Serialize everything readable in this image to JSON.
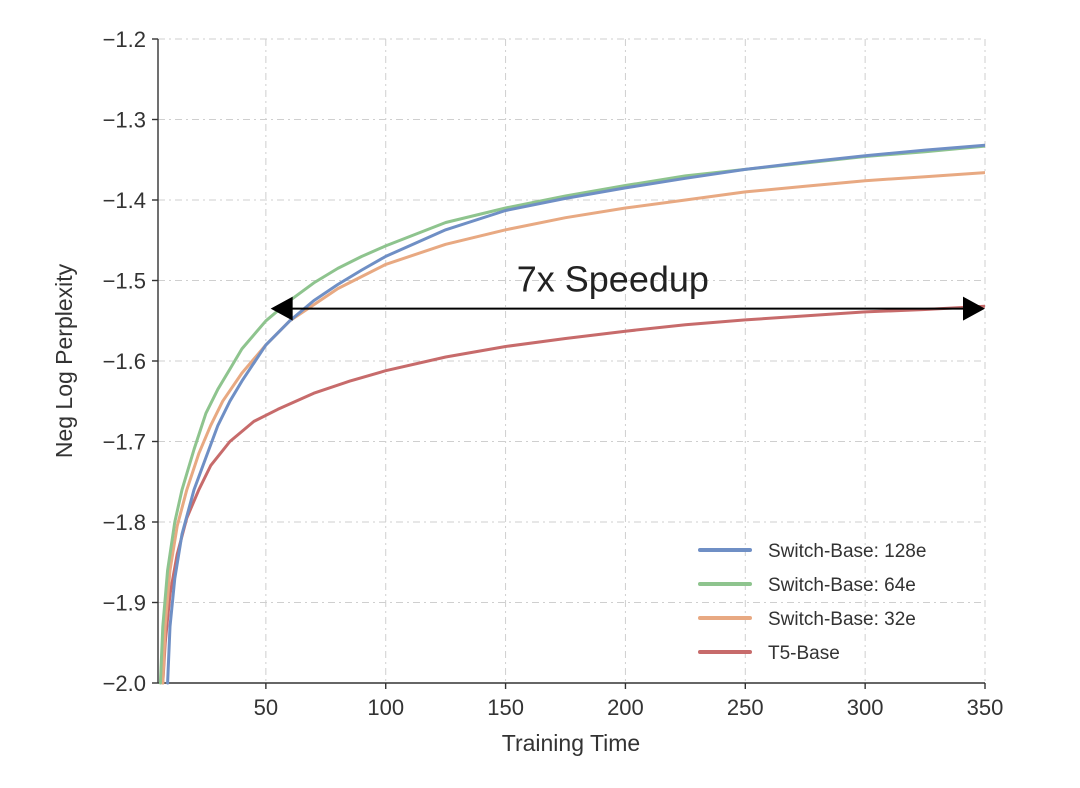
{
  "chart_data": {
    "type": "line",
    "xlabel": "Training Time",
    "ylabel": "Neg Log Perplexity",
    "xlim": [
      5,
      350
    ],
    "ylim": [
      -2.0,
      -1.2
    ],
    "x_ticks": [
      50,
      100,
      150,
      200,
      250,
      300,
      350
    ],
    "y_ticks": [
      -2.0,
      -1.9,
      -1.8,
      -1.7,
      -1.6,
      -1.5,
      -1.4,
      -1.3,
      -1.2
    ],
    "x_tick_labels": [
      "50",
      "100",
      "150",
      "200",
      "250",
      "300",
      "350"
    ],
    "y_tick_labels": [
      "−2.0",
      "−1.9",
      "−1.8",
      "−1.7",
      "−1.6",
      "−1.5",
      "−1.4",
      "−1.3",
      "−1.2"
    ],
    "grid": true,
    "legend_position": "bottom-right",
    "series": [
      {
        "name": "Switch-Base: 128e",
        "color": "#6f8fc5",
        "points": [
          [
            9,
            -2.0
          ],
          [
            10,
            -1.93
          ],
          [
            12,
            -1.87
          ],
          [
            15,
            -1.815
          ],
          [
            20,
            -1.76
          ],
          [
            25,
            -1.72
          ],
          [
            30,
            -1.68
          ],
          [
            35,
            -1.65
          ],
          [
            40,
            -1.625
          ],
          [
            50,
            -1.58
          ],
          [
            60,
            -1.55
          ],
          [
            70,
            -1.525
          ],
          [
            80,
            -1.505
          ],
          [
            90,
            -1.487
          ],
          [
            100,
            -1.47
          ],
          [
            125,
            -1.437
          ],
          [
            150,
            -1.413
          ],
          [
            175,
            -1.398
          ],
          [
            200,
            -1.385
          ],
          [
            225,
            -1.373
          ],
          [
            250,
            -1.362
          ],
          [
            275,
            -1.353
          ],
          [
            300,
            -1.345
          ],
          [
            325,
            -1.338
          ],
          [
            350,
            -1.332
          ]
        ]
      },
      {
        "name": "Switch-Base: 64e",
        "color": "#8ec48e",
        "points": [
          [
            6,
            -2.0
          ],
          [
            7,
            -1.93
          ],
          [
            9,
            -1.86
          ],
          [
            12,
            -1.8
          ],
          [
            15,
            -1.76
          ],
          [
            20,
            -1.71
          ],
          [
            25,
            -1.665
          ],
          [
            30,
            -1.635
          ],
          [
            35,
            -1.61
          ],
          [
            40,
            -1.585
          ],
          [
            50,
            -1.55
          ],
          [
            60,
            -1.525
          ],
          [
            70,
            -1.503
          ],
          [
            80,
            -1.485
          ],
          [
            90,
            -1.47
          ],
          [
            100,
            -1.457
          ],
          [
            125,
            -1.428
          ],
          [
            150,
            -1.41
          ],
          [
            175,
            -1.395
          ],
          [
            200,
            -1.382
          ],
          [
            225,
            -1.37
          ],
          [
            250,
            -1.362
          ],
          [
            275,
            -1.354
          ],
          [
            300,
            -1.346
          ],
          [
            325,
            -1.34
          ],
          [
            350,
            -1.333
          ]
        ]
      },
      {
        "name": "Switch-Base: 32e",
        "color": "#e8a982",
        "points": [
          [
            7,
            -2.0
          ],
          [
            8,
            -1.93
          ],
          [
            10,
            -1.86
          ],
          [
            13,
            -1.805
          ],
          [
            17,
            -1.76
          ],
          [
            22,
            -1.715
          ],
          [
            27,
            -1.68
          ],
          [
            32,
            -1.65
          ],
          [
            40,
            -1.615
          ],
          [
            50,
            -1.58
          ],
          [
            60,
            -1.55
          ],
          [
            70,
            -1.53
          ],
          [
            80,
            -1.51
          ],
          [
            90,
            -1.495
          ],
          [
            100,
            -1.48
          ],
          [
            125,
            -1.455
          ],
          [
            150,
            -1.437
          ],
          [
            175,
            -1.422
          ],
          [
            200,
            -1.41
          ],
          [
            225,
            -1.4
          ],
          [
            250,
            -1.39
          ],
          [
            275,
            -1.383
          ],
          [
            300,
            -1.376
          ],
          [
            325,
            -1.371
          ],
          [
            350,
            -1.366
          ]
        ]
      },
      {
        "name": "T5-Base",
        "color": "#c76b6b",
        "points": [
          [
            7,
            -2.0
          ],
          [
            8,
            -1.95
          ],
          [
            10,
            -1.89
          ],
          [
            13,
            -1.84
          ],
          [
            17,
            -1.795
          ],
          [
            22,
            -1.76
          ],
          [
            27,
            -1.73
          ],
          [
            35,
            -1.7
          ],
          [
            45,
            -1.675
          ],
          [
            55,
            -1.66
          ],
          [
            70,
            -1.64
          ],
          [
            85,
            -1.625
          ],
          [
            100,
            -1.612
          ],
          [
            125,
            -1.595
          ],
          [
            150,
            -1.582
          ],
          [
            175,
            -1.572
          ],
          [
            200,
            -1.563
          ],
          [
            225,
            -1.555
          ],
          [
            250,
            -1.549
          ],
          [
            275,
            -1.544
          ],
          [
            300,
            -1.539
          ],
          [
            325,
            -1.536
          ],
          [
            350,
            -1.532
          ]
        ]
      }
    ],
    "annotations": [
      {
        "text": "7x Speedup",
        "arrow_from_x": 52,
        "arrow_to_x": 350,
        "arrow_y": -1.535
      }
    ]
  }
}
